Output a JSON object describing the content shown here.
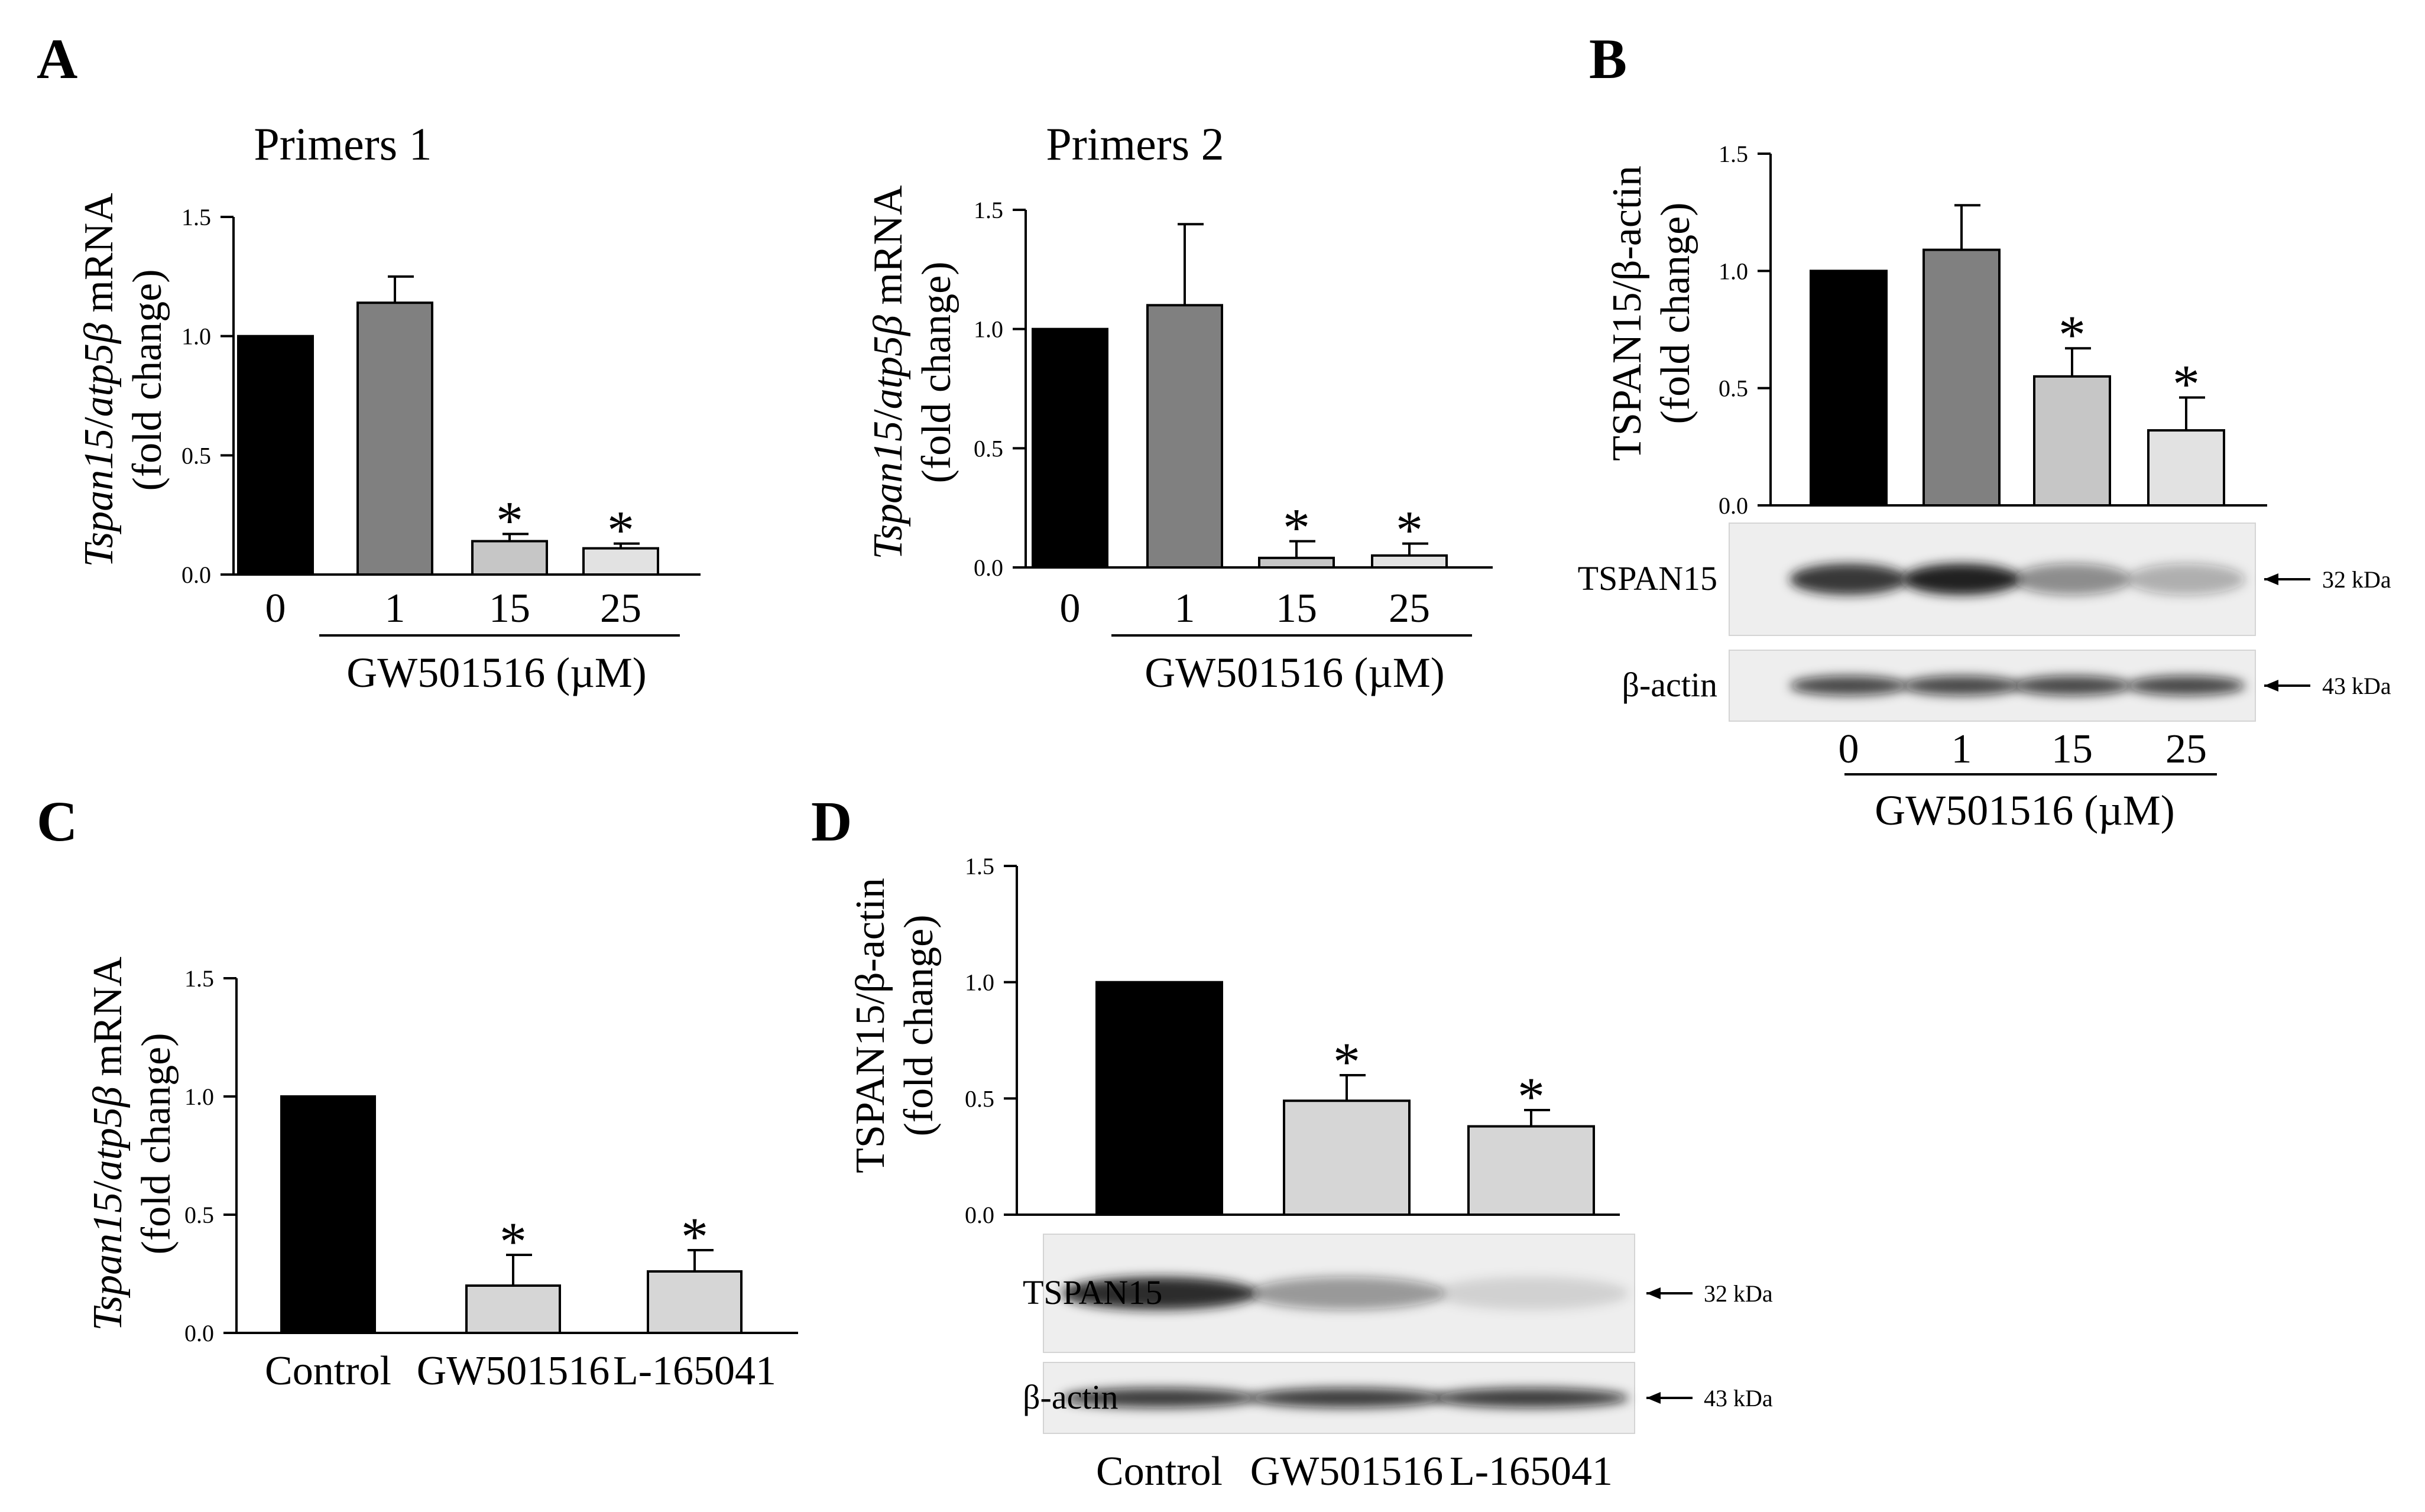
{
  "panels": {
    "a": "A",
    "b": "B",
    "c": "C",
    "d": "D"
  },
  "chart_data": [
    {
      "id": "A1",
      "type": "bar",
      "title": "Primers 1",
      "ylabel_gene": "Tspan15",
      "ylabel_sep": "/",
      "ylabel_ref": "atp5β",
      "ylabel_unit": " mRNA",
      "ylabel_line2": "(fold change)",
      "xlabel": "GW501516 (µM)",
      "categories": [
        "0",
        "1",
        "15",
        "25"
      ],
      "values": [
        1.0,
        1.14,
        0.14,
        0.11
      ],
      "errors": [
        0.0,
        0.11,
        0.03,
        0.02
      ],
      "significant": [
        false,
        false,
        true,
        true
      ],
      "sig_mark": "*",
      "colors": [
        "#000000",
        "#808080",
        "#c6c6c6",
        "#e2e2e2"
      ],
      "ylim": [
        0,
        1.5
      ],
      "yticks": [
        "0.0",
        "0.5",
        "1.0",
        "1.5"
      ]
    },
    {
      "id": "A2",
      "type": "bar",
      "title": "Primers 2",
      "ylabel_gene": "Tspan15",
      "ylabel_sep": "/",
      "ylabel_ref": "atp5β",
      "ylabel_unit": " mRNA",
      "ylabel_line2": "(fold change)",
      "xlabel": "GW501516 (µM)",
      "categories": [
        "0",
        "1",
        "15",
        "25"
      ],
      "values": [
        1.0,
        1.1,
        0.04,
        0.05
      ],
      "errors": [
        0.0,
        0.34,
        0.07,
        0.05
      ],
      "significant": [
        false,
        false,
        true,
        true
      ],
      "sig_mark": "*",
      "colors": [
        "#000000",
        "#808080",
        "#c6c6c6",
        "#e2e2e2"
      ],
      "ylim": [
        0,
        1.5
      ],
      "yticks": [
        "0.0",
        "0.5",
        "1.0",
        "1.5"
      ]
    },
    {
      "id": "B",
      "type": "bar",
      "title": "",
      "ylabel": "TSPAN15/β-actin",
      "ylabel_line2": "(fold change)",
      "xlabel": "GW501516 (µM)",
      "categories": [
        "0",
        "1",
        "15",
        "25"
      ],
      "values": [
        1.0,
        1.09,
        0.55,
        0.32
      ],
      "errors": [
        0.0,
        0.19,
        0.12,
        0.14
      ],
      "significant": [
        false,
        false,
        true,
        true
      ],
      "sig_mark": "*",
      "colors": [
        "#000000",
        "#808080",
        "#c6c6c6",
        "#e2e2e2"
      ],
      "ylim": [
        0,
        1.5
      ],
      "yticks": [
        "0.0",
        "0.5",
        "1.0",
        "1.5"
      ],
      "blot": {
        "row1_label": "TSPAN15",
        "row1_kda": "32 kDa",
        "row2_label": "β-actin",
        "row2_kda": "43 kDa",
        "row1_intensity": [
          0.85,
          0.95,
          0.45,
          0.3
        ],
        "row2_intensity": [
          0.75,
          0.75,
          0.75,
          0.75
        ]
      }
    },
    {
      "id": "C",
      "type": "bar",
      "title": "",
      "ylabel_gene": "Tspan15",
      "ylabel_sep": "/",
      "ylabel_ref": "atp5β",
      "ylabel_unit": " mRNA",
      "ylabel_line2": "(fold change)",
      "xlabel": "",
      "categories": [
        "Control",
        "GW501516",
        "L-165041"
      ],
      "values": [
        1.0,
        0.2,
        0.26
      ],
      "errors": [
        0.0,
        0.13,
        0.09
      ],
      "significant": [
        false,
        true,
        true
      ],
      "sig_mark": "*",
      "colors": [
        "#000000",
        "#d6d6d6",
        "#d6d6d6"
      ],
      "ylim": [
        0,
        1.5
      ],
      "yticks": [
        "0.0",
        "0.5",
        "1.0",
        "1.5"
      ]
    },
    {
      "id": "D",
      "type": "bar",
      "title": "",
      "ylabel": "TSPAN15/β-actin",
      "ylabel_line2": "(fold change)",
      "xlabel": "",
      "categories": [
        "Control",
        "GW501516",
        "L-165041"
      ],
      "values": [
        1.0,
        0.49,
        0.38
      ],
      "errors": [
        0.0,
        0.11,
        0.07
      ],
      "significant": [
        false,
        true,
        true
      ],
      "sig_mark": "*",
      "colors": [
        "#000000",
        "#d6d6d6",
        "#d6d6d6"
      ],
      "ylim": [
        0,
        1.5
      ],
      "yticks": [
        "0.0",
        "0.5",
        "1.0",
        "1.5"
      ],
      "blot": {
        "row1_label": "TSPAN15",
        "row1_kda": "32 kDa",
        "row2_label": "β-actin",
        "row2_kda": "43 kDa",
        "row1_intensity": [
          0.9,
          0.4,
          0.12
        ],
        "row2_intensity": [
          0.8,
          0.8,
          0.8
        ]
      }
    }
  ]
}
